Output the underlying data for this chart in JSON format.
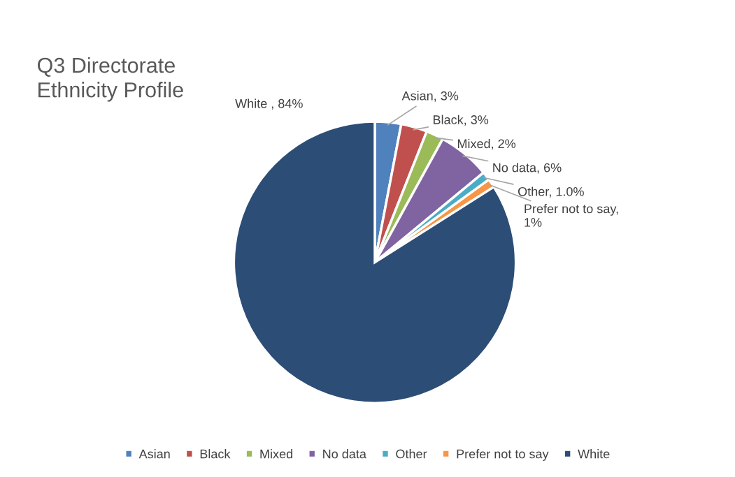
{
  "chart_data": {
    "type": "pie",
    "title": "Q3 Directorate\nEthnicity Profile",
    "categories": [
      "Asian",
      "Black",
      "Mixed",
      "No data",
      "Other",
      "Prefer not to say",
      "White"
    ],
    "values": [
      3,
      3,
      2,
      6,
      1.0,
      1,
      84
    ],
    "colors": [
      "#4f81bd",
      "#c0504d",
      "#9bbb59",
      "#8064a2",
      "#4bacc6",
      "#f79646",
      "#2c4d75"
    ],
    "value_labels": [
      "Asian, 3%",
      "Black, 3%",
      "Mixed, 2%",
      "No data, 6%",
      "Other, 1.0%",
      "Prefer not to say,\n1%",
      "White , 84%"
    ],
    "legend": "bottom"
  }
}
